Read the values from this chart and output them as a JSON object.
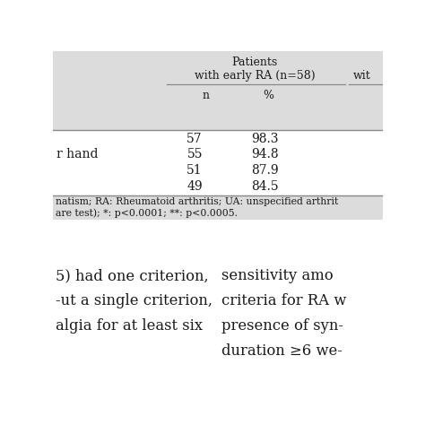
{
  "title_line1": "Patients",
  "title_line2": "with early RA (n=58)",
  "title_right_partial": "wit",
  "col_headers": [
    "n",
    "%"
  ],
  "row_left_labels": [
    "",
    "r hand",
    "",
    ""
  ],
  "data": [
    [
      "57",
      "98.3"
    ],
    [
      "55",
      "94.8"
    ],
    [
      "51",
      "87.9"
    ],
    [
      "49",
      "84.5"
    ]
  ],
  "footnote_line1": "natism; RA: Rheumatoid arthritis; UA: unspecified arthrit",
  "footnote_line2": "are test); *: p<0.0001; **: p<0.0005.",
  "body_text_left": [
    "5) had one criterion,",
    "-ut a single criterion,",
    "algia for at least six"
  ],
  "body_text_right": [
    "sensitivity amo",
    "criteria for RA w",
    "presence of syn-",
    "duration ≥6 we-"
  ],
  "gray_bg": "#dcdcdc",
  "white_bg": "#ffffff",
  "text_color": "#1a1a1a",
  "line_color": "#888888",
  "font_size_title": 9.0,
  "font_size_header": 9.0,
  "font_size_data": 10.0,
  "font_size_footnote": 7.8,
  "font_size_body": 11.8
}
